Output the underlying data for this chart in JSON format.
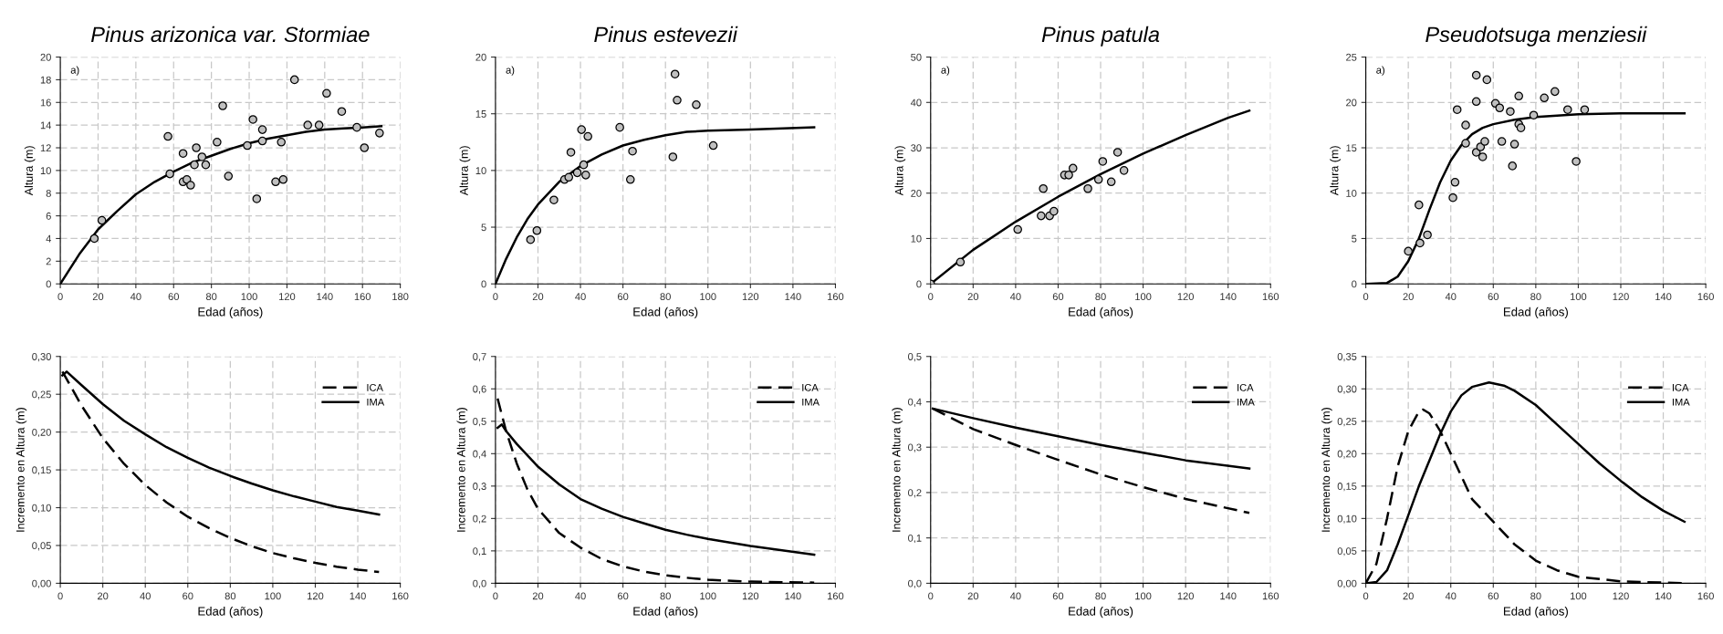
{
  "chart_data": [
    {
      "type": "scatter",
      "title": "Pinus arizonica var. Stormiae",
      "xlabel": "Edad (años)",
      "ylabel": "Altura (m)",
      "annotations": [
        "a)"
      ],
      "xlim": [
        0,
        180
      ],
      "ylim": [
        0,
        20
      ],
      "xticks": [
        0,
        20,
        40,
        60,
        80,
        100,
        120,
        140,
        160,
        180
      ],
      "yticks": [
        0,
        2,
        4,
        6,
        8,
        10,
        12,
        14,
        16,
        18,
        20
      ],
      "grid": true,
      "legend": false,
      "series": [
        {
          "color": "#c0c0c0",
          "marker": "circle",
          "x": [
            18,
            22,
            57,
            58,
            65,
            65,
            67,
            69,
            71,
            72,
            75,
            77,
            83,
            86,
            89,
            99,
            102,
            104,
            107,
            107,
            114,
            117,
            118,
            124,
            131,
            137,
            141,
            149,
            157,
            161,
            169
          ],
          "values": [
            4,
            5.6,
            13,
            9.7,
            11.5,
            9,
            9.2,
            8.7,
            10.5,
            12,
            11.2,
            10.5,
            12.5,
            15.7,
            9.5,
            12.2,
            14.5,
            7.5,
            13.6,
            12.6,
            9,
            12.5,
            9.2,
            18,
            14,
            14,
            16.8,
            15.2,
            13.8,
            12,
            13.3
          ]
        },
        {
          "type": "line",
          "color": "#000000",
          "line_style": "solid",
          "x": [
            0,
            10,
            20,
            30,
            40,
            50,
            60,
            70,
            80,
            90,
            100,
            110,
            120,
            130,
            140,
            150,
            160,
            170
          ],
          "values": [
            0,
            2.6,
            4.8,
            6.4,
            7.9,
            9,
            9.9,
            10.7,
            11.3,
            11.9,
            12.4,
            12.8,
            13.1,
            13.4,
            13.6,
            13.7,
            13.8,
            13.9
          ]
        }
      ]
    },
    {
      "type": "scatter",
      "title": "Pinus estevezii",
      "xlabel": "Edad (años)",
      "ylabel": "Altura (m)",
      "annotations": [
        "a)"
      ],
      "xlim": [
        0,
        160
      ],
      "ylim": [
        0,
        20
      ],
      "xticks": [
        0,
        20,
        40,
        60,
        80,
        100,
        120,
        140,
        160
      ],
      "yticks": [
        0,
        5,
        10,
        15,
        20
      ],
      "grid": true,
      "legend": false,
      "series": [
        {
          "color": "#c0c0c0",
          "marker": "circle",
          "x": [
            16.5,
            19.5,
            27.5,
            32.5,
            34.5,
            35.5,
            38.5,
            40.5,
            41.5,
            42.5,
            43.5,
            58.5,
            63.5,
            64.5,
            83.5,
            84.5,
            85.5,
            94.5,
            102.5
          ],
          "values": [
            3.9,
            4.7,
            7.4,
            9.2,
            9.4,
            11.6,
            9.8,
            13.6,
            10.5,
            9.6,
            13,
            13.8,
            9.2,
            11.7,
            11.2,
            18.5,
            16.2,
            15.8,
            12.2
          ]
        },
        {
          "type": "line",
          "color": "#000000",
          "line_style": "solid",
          "x": [
            0,
            5,
            10,
            15,
            20,
            30,
            40,
            50,
            60,
            70,
            80,
            90,
            100,
            120,
            150
          ],
          "values": [
            0,
            2.2,
            4.1,
            5.7,
            7,
            9,
            10.4,
            11.4,
            12.2,
            12.7,
            13.1,
            13.4,
            13.5,
            13.6,
            13.8
          ]
        }
      ]
    },
    {
      "type": "scatter",
      "title": "Pinus patula",
      "xlabel": "Edad (años)",
      "ylabel": "Altura (m)",
      "annotations": [
        "a)"
      ],
      "xlim": [
        0,
        160
      ],
      "ylim": [
        0,
        50
      ],
      "xticks": [
        0,
        20,
        40,
        60,
        80,
        100,
        120,
        140,
        160
      ],
      "yticks": [
        0,
        10,
        20,
        30,
        40,
        50
      ],
      "grid": true,
      "legend": false,
      "series": [
        {
          "color": "#c0c0c0",
          "marker": "circle",
          "x": [
            0,
            14,
            41,
            52,
            53,
            56,
            58,
            63,
            65,
            67,
            74,
            79,
            81,
            85,
            88,
            91
          ],
          "values": [
            0,
            4.8,
            12,
            15,
            21,
            15,
            16,
            24,
            24,
            25.5,
            21,
            23,
            27,
            22.5,
            29,
            25
          ]
        },
        {
          "type": "line",
          "color": "#000000",
          "line_style": "solid",
          "x": [
            0,
            20,
            40,
            60,
            80,
            100,
            120,
            140,
            150
          ],
          "values": [
            0,
            7.5,
            13.7,
            19.2,
            24.2,
            28.7,
            32.8,
            36.6,
            38.2
          ]
        }
      ]
    },
    {
      "type": "scatter",
      "title": "Pseudotsuga menziesii",
      "xlabel": "Edad (años)",
      "ylabel": "Altura (m)",
      "annotations": [
        "a)"
      ],
      "xlim": [
        0,
        160
      ],
      "ylim": [
        0,
        25
      ],
      "xticks": [
        0,
        20,
        40,
        60,
        80,
        100,
        120,
        140,
        160
      ],
      "yticks": [
        0,
        5,
        10,
        15,
        20,
        25
      ],
      "grid": true,
      "legend": false,
      "series": [
        {
          "color": "#c0c0c0",
          "marker": "circle",
          "x": [
            20,
            25,
            25.5,
            29,
            41,
            42,
            43,
            47,
            47,
            52,
            52,
            52,
            54,
            55,
            56,
            57,
            61,
            63,
            64,
            68,
            69,
            70,
            72,
            72,
            73,
            79,
            84,
            89,
            95,
            99,
            103
          ],
          "values": [
            3.6,
            8.7,
            4.5,
            5.4,
            9.5,
            11.2,
            19.2,
            17.5,
            15.5,
            23,
            20.1,
            14.5,
            15.1,
            14,
            15.7,
            22.5,
            19.9,
            19.4,
            15.7,
            19,
            13,
            15.4,
            20.7,
            17.6,
            17.2,
            18.6,
            20.5,
            21.2,
            19.2,
            13.5,
            19.2
          ]
        },
        {
          "type": "line",
          "color": "#000000",
          "line_style": "solid",
          "x": [
            0,
            10,
            15,
            20,
            25,
            30,
            35,
            40,
            45,
            50,
            55,
            60,
            70,
            80,
            100,
            120,
            150
          ],
          "values": [
            0,
            0.1,
            0.8,
            2.5,
            5,
            8.2,
            11.2,
            13.6,
            15.3,
            16.5,
            17.2,
            17.6,
            18.1,
            18.4,
            18.7,
            18.8,
            18.8
          ]
        }
      ]
    },
    {
      "type": "line",
      "xlabel": "Edad (años)",
      "ylabel": "Incremento en Altura (m)",
      "xlim": [
        0,
        160
      ],
      "ylim": [
        0,
        0.3
      ],
      "xticks": [
        0,
        20,
        40,
        60,
        80,
        100,
        120,
        140,
        160
      ],
      "yticks": [
        {
          "value": 0,
          "label": "0,00"
        },
        {
          "value": 0.05,
          "label": "0,05"
        },
        {
          "value": 0.1,
          "label": "0,10"
        },
        {
          "value": 0.15,
          "label": "0,15"
        },
        {
          "value": 0.2,
          "label": "0,20"
        },
        {
          "value": 0.25,
          "label": "0,25"
        },
        {
          "value": 0.3,
          "label": "0,30"
        }
      ],
      "grid": true,
      "legend": "top right",
      "series": [
        {
          "name": "ICA",
          "color": "#000000",
          "line_style": "dashed",
          "x": [
            1,
            10,
            20,
            30,
            40,
            50,
            60,
            70,
            80,
            90,
            100,
            110,
            120,
            130,
            140,
            150
          ],
          "values": [
            0.28,
            0.235,
            0.192,
            0.158,
            0.13,
            0.107,
            0.088,
            0.073,
            0.06,
            0.049,
            0.04,
            0.033,
            0.027,
            0.022,
            0.018,
            0.015
          ]
        },
        {
          "name": "IMA",
          "color": "#000000",
          "line_style": "solid",
          "x": [
            1,
            3,
            10,
            20,
            30,
            40,
            50,
            60,
            70,
            80,
            90,
            100,
            110,
            120,
            130,
            140,
            150
          ],
          "values": [
            0.275,
            0.28,
            0.262,
            0.237,
            0.215,
            0.197,
            0.18,
            0.166,
            0.153,
            0.142,
            0.132,
            0.123,
            0.115,
            0.108,
            0.101,
            0.096,
            0.091
          ]
        }
      ]
    },
    {
      "type": "line",
      "xlabel": "Edad (años)",
      "ylabel": "Incremento en Altura (m)",
      "xlim": [
        0,
        160
      ],
      "ylim": [
        0,
        0.7
      ],
      "xticks": [
        0,
        20,
        40,
        60,
        80,
        100,
        120,
        140,
        160
      ],
      "yticks": [
        {
          "value": 0,
          "label": "0,0"
        },
        {
          "value": 0.1,
          "label": "0,1"
        },
        {
          "value": 0.2,
          "label": "0,2"
        },
        {
          "value": 0.3,
          "label": "0,3"
        },
        {
          "value": 0.4,
          "label": "0,4"
        },
        {
          "value": 0.5,
          "label": "0,5"
        },
        {
          "value": 0.6,
          "label": "0,6"
        },
        {
          "value": 0.7,
          "label": "0,7"
        }
      ],
      "grid": true,
      "legend": "top right",
      "series": [
        {
          "name": "ICA",
          "color": "#000000",
          "line_style": "dashed",
          "x": [
            1,
            5,
            10,
            15,
            20,
            30,
            40,
            50,
            60,
            70,
            80,
            90,
            100,
            120,
            150
          ],
          "values": [
            0.57,
            0.47,
            0.37,
            0.29,
            0.23,
            0.155,
            0.11,
            0.075,
            0.052,
            0.036,
            0.025,
            0.017,
            0.011,
            0.005,
            0.002
          ]
        },
        {
          "name": "IMA",
          "color": "#000000",
          "line_style": "solid",
          "x": [
            1,
            3,
            5,
            10,
            20,
            30,
            40,
            50,
            60,
            70,
            80,
            90,
            100,
            120,
            150
          ],
          "values": [
            0.48,
            0.49,
            0.47,
            0.43,
            0.36,
            0.305,
            0.26,
            0.23,
            0.205,
            0.185,
            0.165,
            0.15,
            0.137,
            0.115,
            0.088
          ]
        }
      ]
    },
    {
      "type": "line",
      "xlabel": "Edad (años)",
      "ylabel": "Incremento en Altura (m)",
      "xlim": [
        0,
        160
      ],
      "ylim": [
        0,
        0.5
      ],
      "xticks": [
        0,
        20,
        40,
        60,
        80,
        100,
        120,
        140,
        160
      ],
      "yticks": [
        {
          "value": 0,
          "label": "0,0"
        },
        {
          "value": 0.1,
          "label": "0,1"
        },
        {
          "value": 0.2,
          "label": "0,2"
        },
        {
          "value": 0.3,
          "label": "0,3"
        },
        {
          "value": 0.4,
          "label": "0,4"
        },
        {
          "value": 0.5,
          "label": "0,5"
        }
      ],
      "grid": true,
      "legend": "top right",
      "series": [
        {
          "name": "ICA",
          "color": "#000000",
          "line_style": "dashed",
          "x": [
            1,
            20,
            40,
            60,
            80,
            100,
            120,
            150
          ],
          "values": [
            0.385,
            0.34,
            0.305,
            0.272,
            0.24,
            0.212,
            0.186,
            0.155
          ]
        },
        {
          "name": "IMA",
          "color": "#000000",
          "line_style": "solid",
          "x": [
            1,
            20,
            40,
            60,
            80,
            100,
            120,
            150
          ],
          "values": [
            0.385,
            0.364,
            0.343,
            0.324,
            0.305,
            0.288,
            0.271,
            0.253
          ]
        }
      ]
    },
    {
      "type": "line",
      "xlabel": "Edad (años)",
      "ylabel": "Incremento en Altura (m)",
      "xlim": [
        0,
        160
      ],
      "ylim": [
        0,
        0.35
      ],
      "xticks": [
        0,
        20,
        40,
        60,
        80,
        100,
        120,
        140,
        160
      ],
      "yticks": [
        {
          "value": 0,
          "label": "0,00"
        },
        {
          "value": 0.05,
          "label": "0,05"
        },
        {
          "value": 0.1,
          "label": "0,10"
        },
        {
          "value": 0.15,
          "label": "0,15"
        },
        {
          "value": 0.2,
          "label": "0,20"
        },
        {
          "value": 0.25,
          "label": "0,25"
        },
        {
          "value": 0.3,
          "label": "0,30"
        },
        {
          "value": 0.35,
          "label": "0,35"
        }
      ],
      "grid": true,
      "legend": "top right",
      "series": [
        {
          "name": "ICA",
          "color": "#000000",
          "line_style": "dashed",
          "x": [
            0,
            5,
            10,
            15,
            20,
            25,
            27,
            30,
            35,
            40,
            45,
            50,
            60,
            70,
            80,
            90,
            100,
            120,
            150
          ],
          "values": [
            0,
            0.03,
            0.1,
            0.18,
            0.235,
            0.265,
            0.268,
            0.262,
            0.235,
            0.2,
            0.165,
            0.13,
            0.095,
            0.06,
            0.035,
            0.02,
            0.01,
            0.003,
            0
          ]
        },
        {
          "name": "IMA",
          "color": "#000000",
          "line_style": "solid",
          "x": [
            0,
            5,
            10,
            15,
            20,
            25,
            30,
            35,
            40,
            45,
            50,
            58,
            65,
            70,
            80,
            90,
            100,
            110,
            120,
            130,
            140,
            150
          ],
          "values": [
            0,
            0.002,
            0.02,
            0.06,
            0.105,
            0.15,
            0.19,
            0.23,
            0.265,
            0.29,
            0.303,
            0.31,
            0.305,
            0.297,
            0.275,
            0.245,
            0.215,
            0.185,
            0.158,
            0.133,
            0.112,
            0.095
          ]
        }
      ]
    }
  ]
}
